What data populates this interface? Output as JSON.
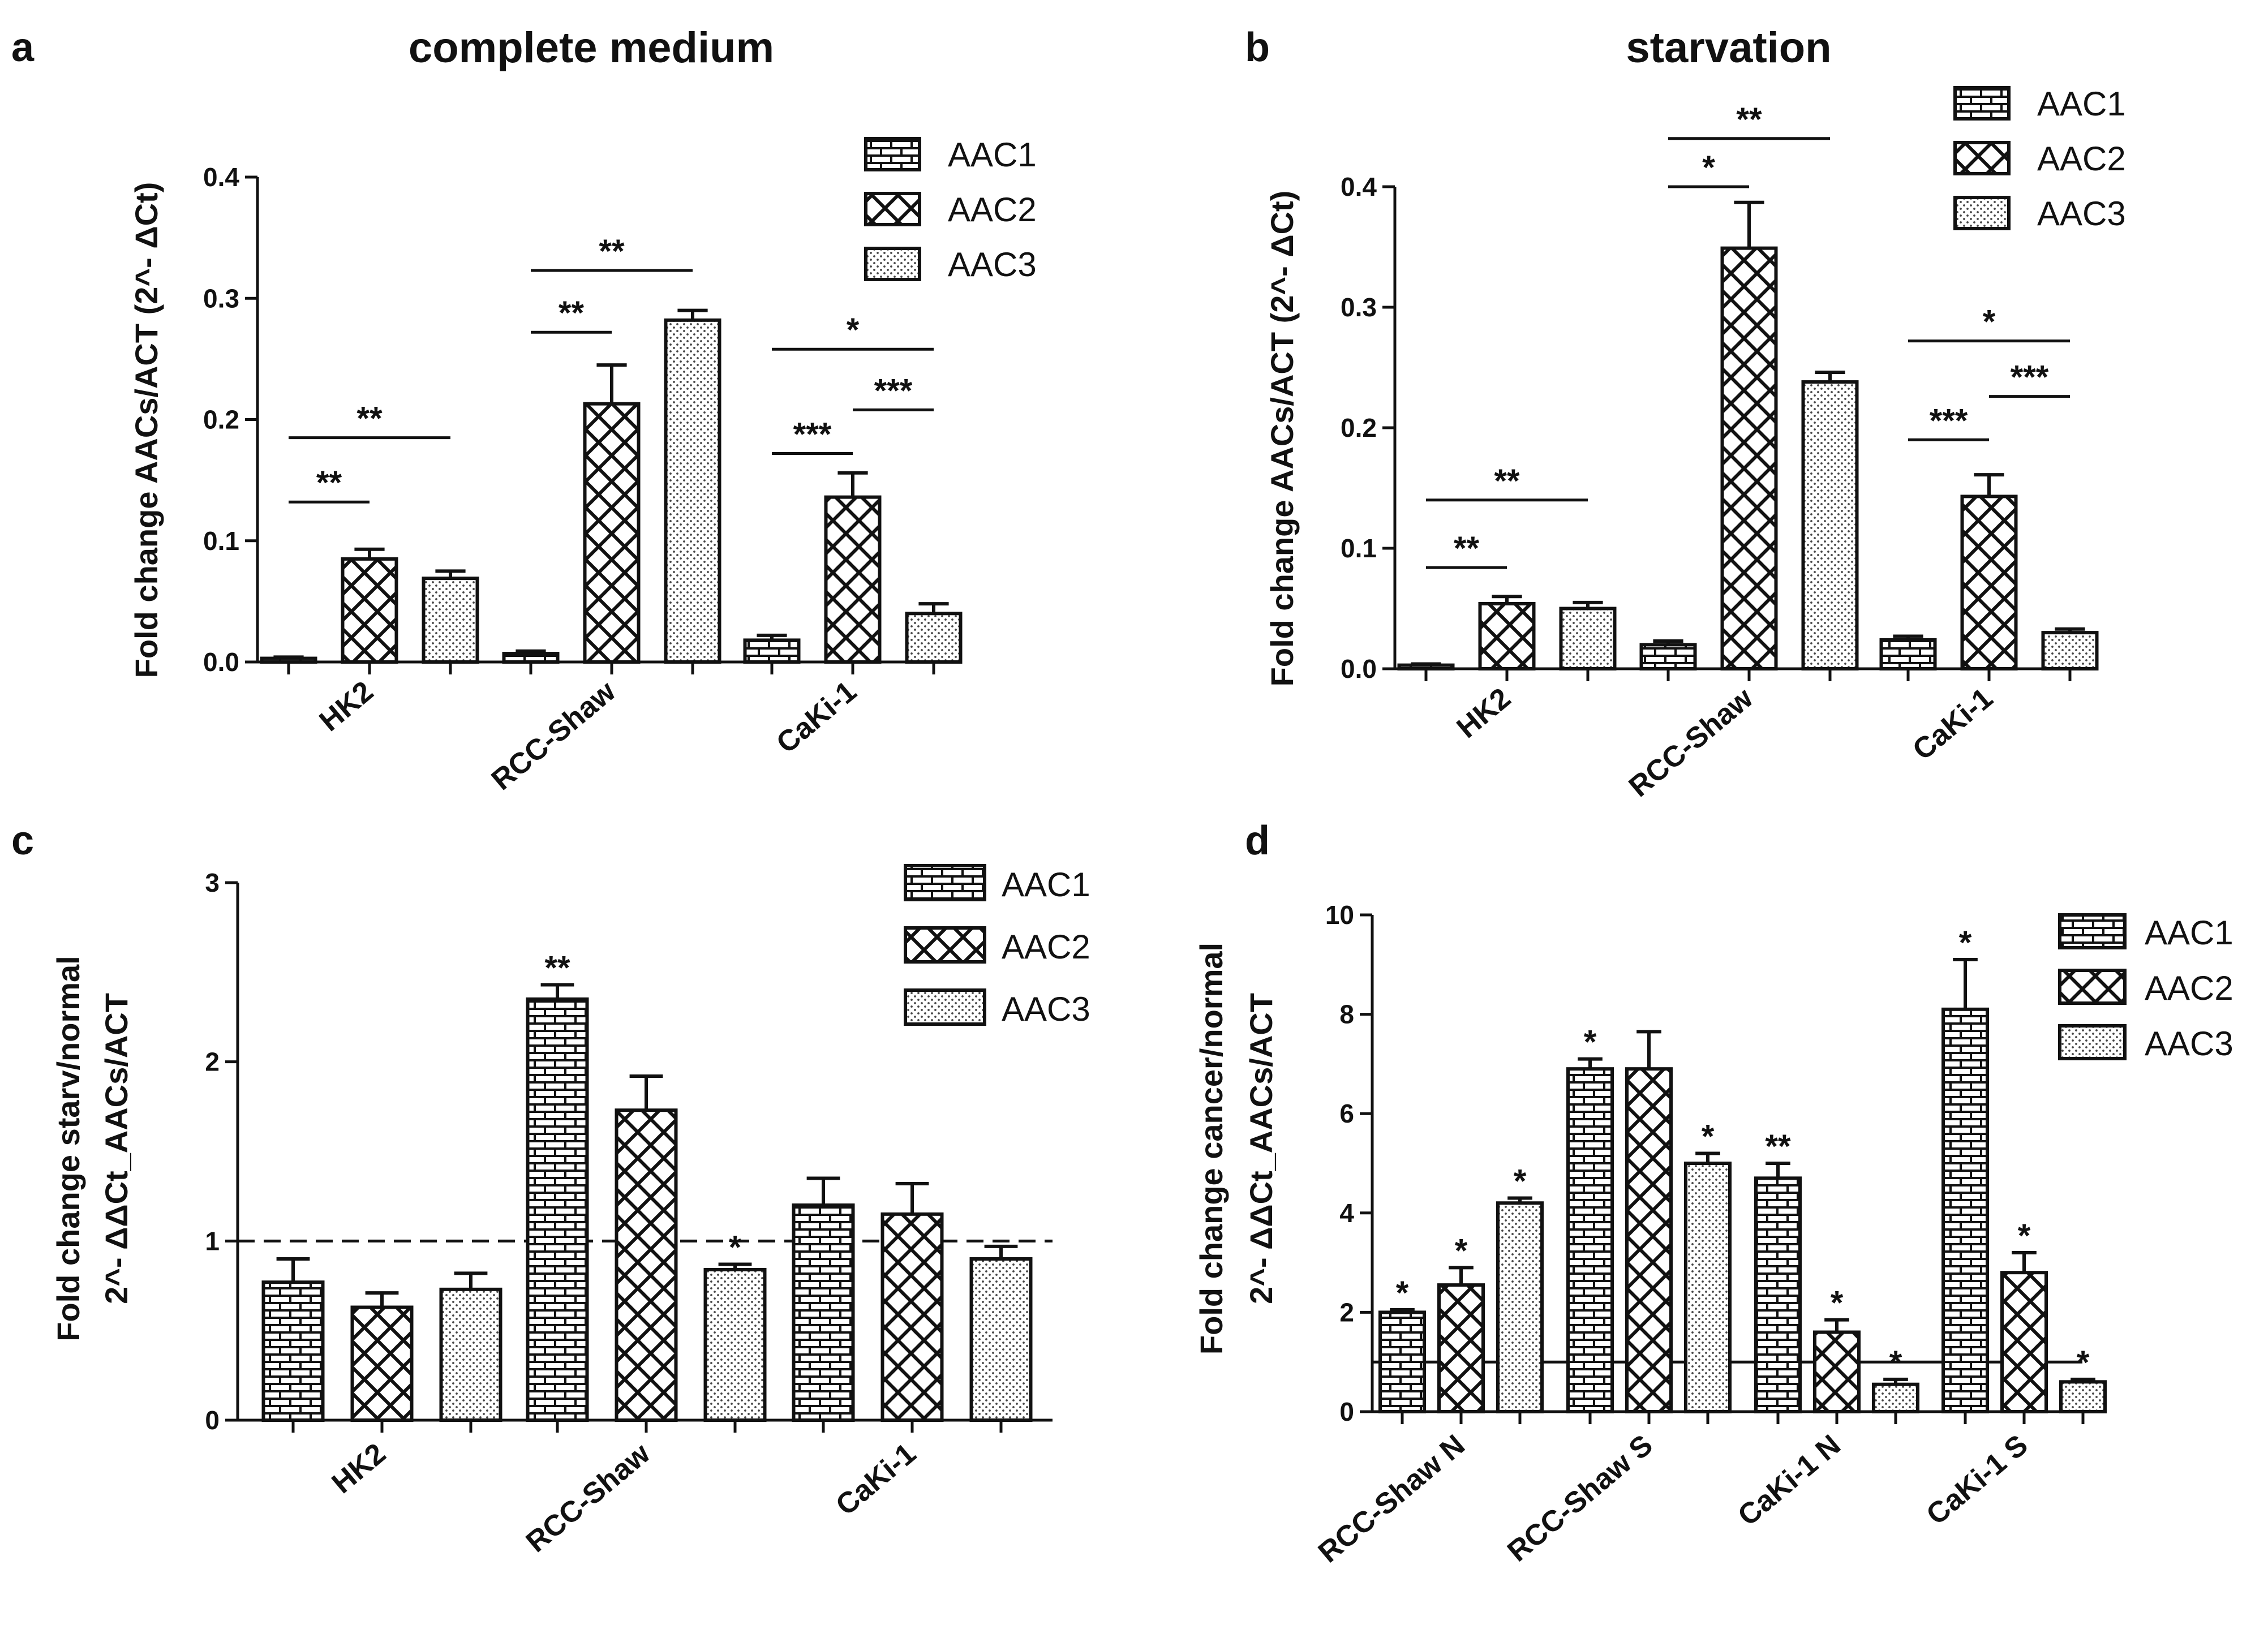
{
  "colors": {
    "ink": "#111111",
    "background": "#ffffff"
  },
  "patterns": {
    "AAC1": "brick",
    "AAC2": "crosshatch",
    "AAC3": "dotted"
  },
  "chart_data": [
    {
      "id": "a",
      "panel_letter": "a",
      "type": "bar",
      "title": "complete medium",
      "ylabel": "Fold change AACs/ACT (2^- ΔCt)",
      "ylim": [
        0,
        0.4
      ],
      "yticks": [
        "0.0",
        "0.1",
        "0.2",
        "0.3",
        "0.4"
      ],
      "ytick_values": [
        0,
        0.1,
        0.2,
        0.3,
        0.4
      ],
      "categories": [
        "HK2",
        "RCC-Shaw",
        "CaKi-1"
      ],
      "legend": [
        "AAC1",
        "AAC2",
        "AAC3"
      ],
      "legend_position": "top-right",
      "series": [
        {
          "name": "AAC1",
          "values": [
            0.003,
            0.007,
            0.018
          ],
          "errors": [
            0.001,
            0.002,
            0.004
          ]
        },
        {
          "name": "AAC2",
          "values": [
            0.085,
            0.213,
            0.136
          ],
          "errors": [
            0.008,
            0.032,
            0.02
          ]
        },
        {
          "name": "AAC3",
          "values": [
            0.069,
            0.282,
            0.04
          ],
          "errors": [
            0.006,
            0.008,
            0.008
          ]
        }
      ],
      "bar_labels": [],
      "significance": [
        {
          "from": [
            0,
            0
          ],
          "to": [
            0,
            1
          ],
          "value": 0.132,
          "text": "**"
        },
        {
          "from": [
            0,
            0
          ],
          "to": [
            0,
            2
          ],
          "value": 0.185,
          "text": "**"
        },
        {
          "from": [
            1,
            0
          ],
          "to": [
            1,
            1
          ],
          "value": 0.272,
          "text": "**"
        },
        {
          "from": [
            1,
            0
          ],
          "to": [
            1,
            2
          ],
          "value": 0.323,
          "text": "**"
        },
        {
          "from": [
            2,
            0
          ],
          "to": [
            2,
            1
          ],
          "value": 0.172,
          "text": "***"
        },
        {
          "from": [
            2,
            1
          ],
          "to": [
            2,
            2
          ],
          "value": 0.208,
          "text": "***"
        },
        {
          "from": [
            2,
            0
          ],
          "to": [
            2,
            2
          ],
          "value": 0.258,
          "text": "*"
        }
      ],
      "reference_line": null
    },
    {
      "id": "b",
      "panel_letter": "b",
      "type": "bar",
      "title": "starvation",
      "ylabel": "Fold change AACs/ACT (2^- ΔCt)",
      "ylim": [
        0,
        0.4
      ],
      "yticks": [
        "0.0",
        "0.1",
        "0.2",
        "0.3",
        "0.4"
      ],
      "ytick_values": [
        0,
        0.1,
        0.2,
        0.3,
        0.4
      ],
      "categories": [
        "HK2",
        "RCC-Shaw",
        "CaKi-1"
      ],
      "legend": [
        "AAC1",
        "AAC2",
        "AAC3"
      ],
      "legend_position": "top-right",
      "series": [
        {
          "name": "AAC1",
          "values": [
            0.003,
            0.02,
            0.024
          ],
          "errors": [
            0.001,
            0.003,
            0.003
          ]
        },
        {
          "name": "AAC2",
          "values": [
            0.054,
            0.349,
            0.143
          ],
          "errors": [
            0.006,
            0.038,
            0.018
          ]
        },
        {
          "name": "AAC3",
          "values": [
            0.05,
            0.238,
            0.03
          ],
          "errors": [
            0.005,
            0.008,
            0.003
          ]
        }
      ],
      "bar_labels": [],
      "significance": [
        {
          "from": [
            0,
            0
          ],
          "to": [
            0,
            1
          ],
          "value": 0.084,
          "text": "**"
        },
        {
          "from": [
            0,
            0
          ],
          "to": [
            0,
            2
          ],
          "value": 0.14,
          "text": "**"
        },
        {
          "from": [
            1,
            0
          ],
          "to": [
            1,
            1
          ],
          "value": 0.4,
          "text": "*"
        },
        {
          "from": [
            1,
            0
          ],
          "to": [
            1,
            2
          ],
          "value": 0.44,
          "text": "**"
        },
        {
          "from": [
            2,
            0
          ],
          "to": [
            2,
            1
          ],
          "value": 0.19,
          "text": "***"
        },
        {
          "from": [
            2,
            1
          ],
          "to": [
            2,
            2
          ],
          "value": 0.226,
          "text": "***"
        },
        {
          "from": [
            2,
            0
          ],
          "to": [
            2,
            2
          ],
          "value": 0.272,
          "text": "*"
        }
      ],
      "reference_line": null
    },
    {
      "id": "c",
      "panel_letter": "c",
      "type": "bar",
      "title": "",
      "ylabel": "Fold change starv/normal",
      "ylabel2": "2^- ΔΔCt_AACs/ACT",
      "ylim": [
        0,
        3
      ],
      "yticks": [
        "0",
        "1",
        "2",
        "3"
      ],
      "ytick_values": [
        0,
        1,
        2,
        3
      ],
      "categories": [
        "HK2",
        "RCC-Shaw",
        "CaKi-1"
      ],
      "legend": [
        "AAC1",
        "AAC2",
        "AAC3"
      ],
      "legend_position": "top-right",
      "series": [
        {
          "name": "AAC1",
          "values": [
            0.77,
            2.35,
            1.2
          ],
          "errors": [
            0.13,
            0.08,
            0.15
          ]
        },
        {
          "name": "AAC2",
          "values": [
            0.63,
            1.73,
            1.15
          ],
          "errors": [
            0.08,
            0.19,
            0.17
          ]
        },
        {
          "name": "AAC3",
          "values": [
            0.73,
            0.84,
            0.9
          ],
          "errors": [
            0.09,
            0.03,
            0.07
          ]
        }
      ],
      "bar_labels": [
        {
          "group": 1,
          "series": 0,
          "text": "**"
        },
        {
          "group": 1,
          "series": 2,
          "text": "*"
        }
      ],
      "significance": [],
      "reference_line": {
        "value": 1,
        "style": "dashed"
      }
    },
    {
      "id": "d",
      "panel_letter": "d",
      "type": "bar",
      "title": "",
      "ylabel": "Fold change cancer/normal",
      "ylabel2": "2^- ΔΔCt_AACs/ACT",
      "ylim": [
        0,
        10
      ],
      "yticks": [
        "0",
        "2",
        "4",
        "6",
        "8",
        "10"
      ],
      "ytick_values": [
        0,
        2,
        4,
        6,
        8,
        10
      ],
      "categories": [
        "RCC-Shaw N",
        "RCC-Shaw S",
        "CaKi-1 N",
        "CaKi-1 S"
      ],
      "legend": [
        "AAC1",
        "AAC2",
        "AAC3"
      ],
      "legend_position": "top-right",
      "series": [
        {
          "name": "AAC1",
          "values": [
            2.0,
            6.9,
            4.7,
            8.1
          ],
          "errors": [
            0.05,
            0.2,
            0.3,
            1.0
          ]
        },
        {
          "name": "AAC2",
          "values": [
            2.55,
            6.9,
            1.6,
            2.8
          ],
          "errors": [
            0.35,
            0.75,
            0.25,
            0.4
          ]
        },
        {
          "name": "AAC3",
          "values": [
            4.2,
            5.0,
            0.55,
            0.6
          ],
          "errors": [
            0.1,
            0.2,
            0.1,
            0.05
          ]
        }
      ],
      "bar_labels": [
        {
          "group": 0,
          "series": 0,
          "text": "*"
        },
        {
          "group": 0,
          "series": 1,
          "text": "*"
        },
        {
          "group": 0,
          "series": 2,
          "text": "*"
        },
        {
          "group": 1,
          "series": 0,
          "text": "*"
        },
        {
          "group": 1,
          "series": 2,
          "text": "*"
        },
        {
          "group": 2,
          "series": 0,
          "text": "**"
        },
        {
          "group": 2,
          "series": 1,
          "text": "*"
        },
        {
          "group": 2,
          "series": 2,
          "text": "*"
        },
        {
          "group": 3,
          "series": 0,
          "text": "*"
        },
        {
          "group": 3,
          "series": 1,
          "text": "*"
        },
        {
          "group": 3,
          "series": 2,
          "text": "*"
        }
      ],
      "significance": [],
      "reference_line": {
        "value": 1,
        "style": "solid"
      }
    }
  ]
}
